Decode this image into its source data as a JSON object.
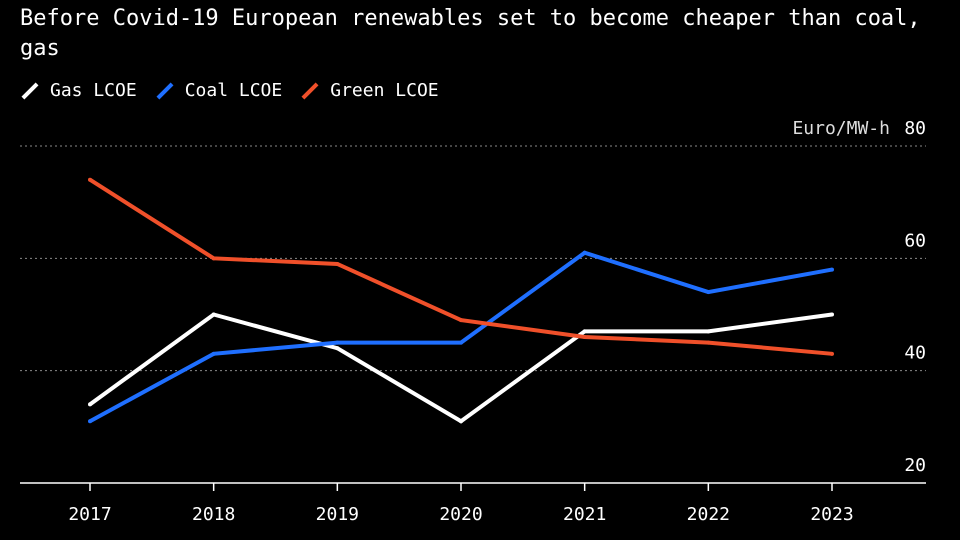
{
  "chart_data": {
    "type": "line",
    "title": "Before Covid-19 European renewables set to become cheaper than coal, gas",
    "ylabel": "Euro/MW-h",
    "x": [
      "2017",
      "2018",
      "2019",
      "2020",
      "2021",
      "2022",
      "2023"
    ],
    "ylim": [
      20,
      80
    ],
    "yticks": [
      20,
      40,
      60,
      80
    ],
    "grid": true,
    "legend_position": "top-left",
    "series": [
      {
        "name": "Gas LCOE",
        "color": "#ffffff",
        "values": [
          34,
          50,
          44,
          31,
          47,
          47,
          50
        ]
      },
      {
        "name": "Coal LCOE",
        "color": "#1f6fff",
        "values": [
          31,
          43,
          45,
          45,
          61,
          54,
          58
        ]
      },
      {
        "name": "Green LCOE",
        "color": "#f0502a",
        "values": [
          74,
          60,
          59,
          49,
          46,
          45,
          43
        ]
      }
    ]
  }
}
